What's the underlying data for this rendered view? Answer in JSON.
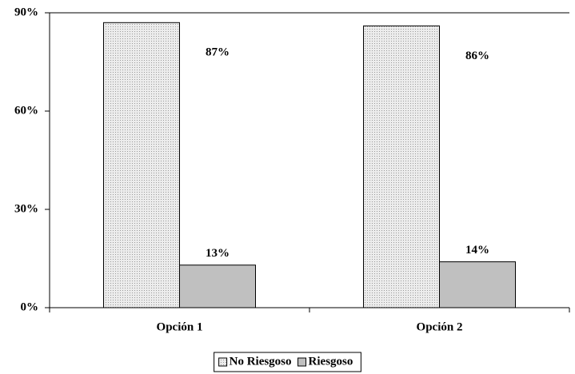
{
  "chart_data": {
    "type": "bar",
    "categories": [
      "Opción 1",
      "Opción 2"
    ],
    "series": [
      {
        "name": "No Riesgoso",
        "color": "#e2e2e2",
        "values": [
          87,
          86
        ],
        "value_labels": [
          "87%",
          "86%"
        ]
      },
      {
        "name": "Riesgoso",
        "color": "#c0c0c0",
        "values": [
          13,
          14
        ],
        "value_labels": [
          "13%",
          "14%"
        ]
      }
    ],
    "ylim": [
      0,
      90
    ],
    "yticks": [
      {
        "value": 0,
        "label": "0%"
      },
      {
        "value": 30,
        "label": "30%"
      },
      {
        "value": 60,
        "label": "60%"
      },
      {
        "value": 90,
        "label": "90%"
      }
    ],
    "legend": "bottom"
  }
}
